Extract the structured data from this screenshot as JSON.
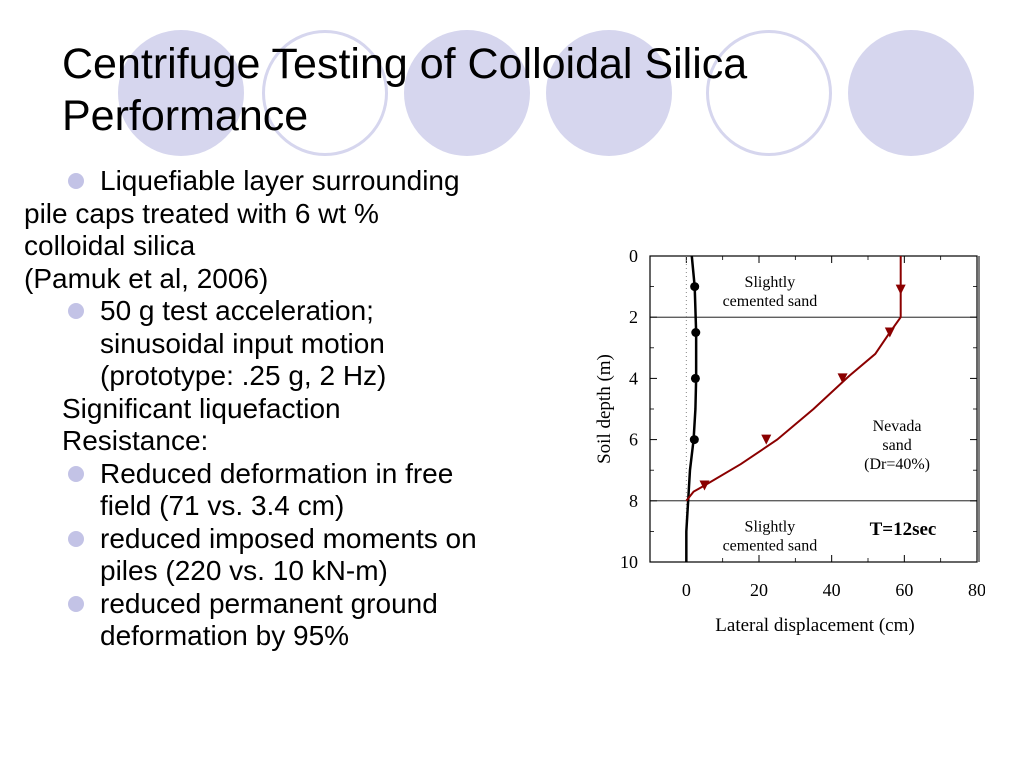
{
  "slide": {
    "title_lines": [
      "Centrifuge Testing of Colloidal Silica",
      "Performance"
    ],
    "bullet1": {
      "lines": [
        "Liquefiable layer surrounding",
        "pile caps treated with 6 wt %",
        "colloidal silica"
      ],
      "citation": "(Pamuk et al, 2006)"
    },
    "bullet2": {
      "lines": [
        "50 g test acceleration;",
        "sinusoidal input motion",
        "(prototype:  .25 g, 2 Hz)"
      ]
    },
    "heading_lines": [
      "Significant liquefaction",
      "Resistance:"
    ],
    "bullet3": {
      "lines": [
        "Reduced deformation in free",
        "field (71 vs. 3.4 cm)"
      ]
    },
    "bullet4": {
      "lines": [
        "reduced imposed moments on",
        "piles (220 vs. 10 kN-m)"
      ]
    },
    "bullet5": {
      "lines": [
        "reduced permanent ground",
        "deformation by 95%"
      ]
    },
    "colors": {
      "bullet": "#c3c3e6",
      "decoration": "#d6d6ee",
      "treated_curve": "#000000",
      "untreated_curve": "#8b0000"
    }
  },
  "chart_data": {
    "type": "line",
    "xlabel": "Lateral displacement (cm)",
    "ylabel": "Soil depth (m)",
    "xlim": [
      -10,
      80
    ],
    "ylim": [
      10,
      0
    ],
    "xticks": [
      0,
      20,
      40,
      60,
      80
    ],
    "yticks": [
      0,
      2,
      4,
      6,
      8,
      10
    ],
    "grid_lines_at_depth": [
      2,
      8
    ],
    "layers": [
      {
        "label_lines": [
          "Slightly",
          "cemented sand"
        ],
        "x": 23,
        "depth": 1.3
      },
      {
        "label_lines": [
          "Nevada",
          "sand",
          "(Dr=40%)"
        ],
        "x": 58,
        "depth": 6.3
      },
      {
        "label_lines": [
          "Slightly",
          "cemented sand"
        ],
        "x": 23,
        "depth": 9.3
      }
    ],
    "annotation": "T=12sec",
    "series": [
      {
        "marker": "circle",
        "color": "#000000",
        "x": [
          0,
          0,
          0.5,
          1,
          2,
          2.5,
          2.7,
          2.7,
          2.3,
          1.5
        ],
        "y": [
          10,
          9,
          8,
          7,
          6,
          5,
          4,
          2.5,
          1,
          0
        ],
        "markers": [
          [
            2.2,
            6
          ],
          [
            2.5,
            4
          ],
          [
            2.6,
            2.5
          ],
          [
            2.3,
            1
          ]
        ]
      },
      {
        "marker": "triangle-down",
        "color": "#8b0000",
        "x": [
          0,
          2,
          5,
          15,
          25,
          35,
          45,
          52,
          56,
          59,
          59,
          59
        ],
        "y": [
          8,
          7.7,
          7.5,
          6.8,
          6,
          5,
          3.9,
          3.2,
          2.5,
          2,
          1,
          0
        ],
        "markers": [
          [
            5,
            7.5
          ],
          [
            22,
            6
          ],
          [
            43,
            4
          ],
          [
            56,
            2.5
          ],
          [
            59,
            1.1
          ]
        ]
      }
    ]
  }
}
